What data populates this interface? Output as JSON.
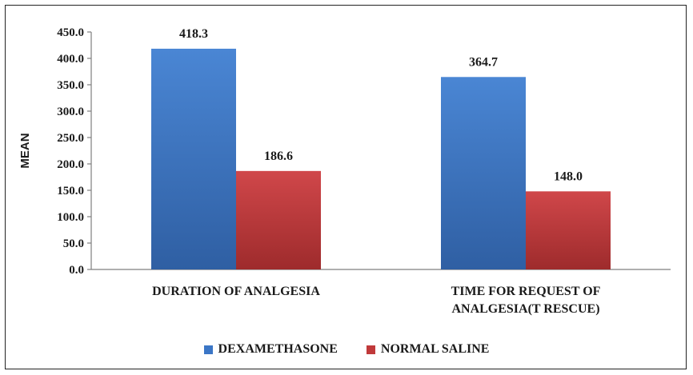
{
  "chart_data": {
    "type": "bar",
    "title": "",
    "xlabel": "",
    "ylabel": "MEAN",
    "ylim": [
      0,
      450
    ],
    "yticks": [
      "0.0",
      "50.0",
      "100.0",
      "150.0",
      "200.0",
      "250.0",
      "300.0",
      "350.0",
      "400.0",
      "450.0"
    ],
    "categories": [
      [
        "DURATION OF ANALGESIA"
      ],
      [
        "TIME FOR REQUEST OF",
        "ANALGESIA(T RESCUE)"
      ]
    ],
    "series": [
      {
        "name": "DEXAMETHASONE",
        "color": "#3b76c6",
        "values": [
          418.3,
          364.7
        ],
        "labels": [
          "418.3",
          "364.7"
        ]
      },
      {
        "name": "NORMAL SALINE",
        "color": "#c0393a",
        "values": [
          186.6,
          148.0
        ],
        "labels": [
          "186.6",
          "148.0"
        ]
      }
    ],
    "legend_position": "bottom",
    "grid": false
  }
}
